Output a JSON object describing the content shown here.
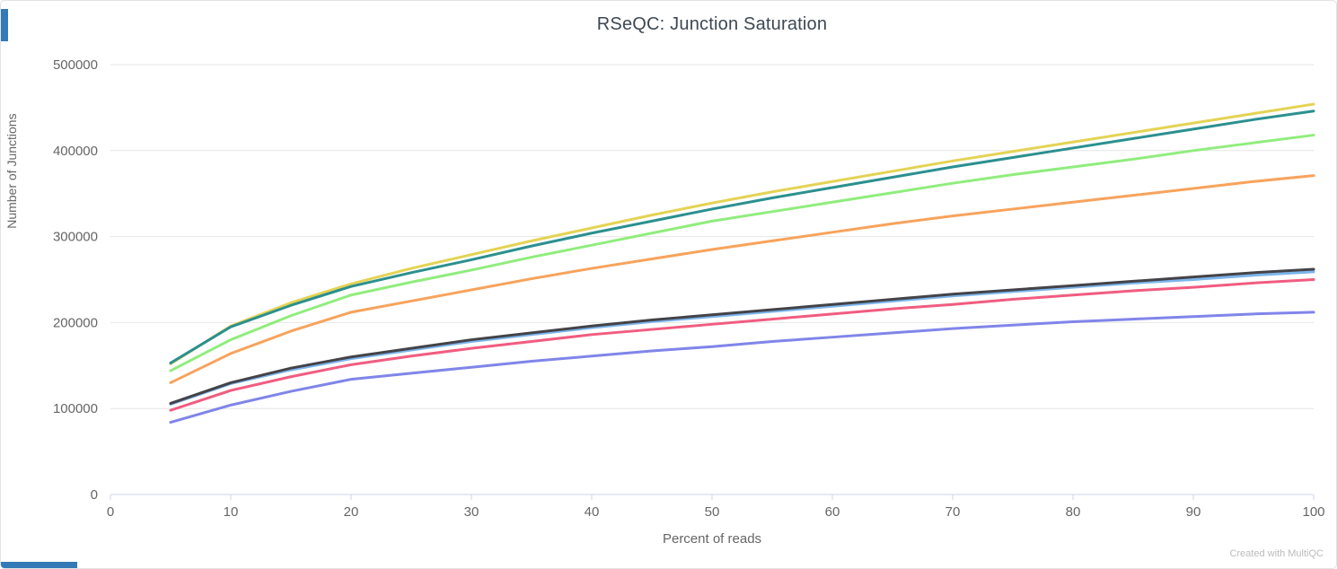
{
  "page": {
    "watermark": "Created with MultiQC"
  },
  "accent": {
    "blue_bar_color": "#337ab7"
  },
  "chart_data": {
    "type": "line",
    "title": "RSeQC: Junction Saturation",
    "xlabel": "Percent of reads",
    "ylabel": "Number of Junctions",
    "xlim": [
      0,
      100
    ],
    "ylim": [
      0,
      500000
    ],
    "x_ticks": [
      0,
      10,
      20,
      30,
      40,
      50,
      60,
      70,
      80,
      90,
      100
    ],
    "y_ticks": [
      0,
      100000,
      200000,
      300000,
      400000,
      500000
    ],
    "grid": "horizontal-only",
    "legend": "none",
    "grid_color": "#e6e6e6",
    "axis_line_color": "#ccd6eb",
    "x": [
      5,
      10,
      15,
      20,
      25,
      30,
      35,
      40,
      45,
      50,
      55,
      60,
      65,
      70,
      75,
      80,
      85,
      90,
      95,
      100
    ],
    "series": [
      {
        "name": "series-lightblue",
        "color": "#7cb5ec",
        "values": [
          105000,
          129000,
          145000,
          158000,
          168000,
          178000,
          186000,
          194000,
          201000,
          207000,
          213000,
          219000,
          225000,
          231000,
          236000,
          241000,
          246000,
          250000,
          255000,
          259000
        ]
      },
      {
        "name": "series-dark",
        "color": "#434348",
        "values": [
          106000,
          130000,
          147000,
          160000,
          170000,
          180000,
          188000,
          196000,
          203000,
          209000,
          215000,
          221000,
          227000,
          233000,
          238000,
          243000,
          248000,
          253000,
          258000,
          262000
        ]
      },
      {
        "name": "series-green",
        "color": "#90ed7d",
        "values": [
          144000,
          180000,
          208000,
          232000,
          247000,
          261000,
          276000,
          290000,
          304000,
          318000,
          329000,
          340000,
          351000,
          362000,
          372000,
          381000,
          390000,
          400000,
          409000,
          418000
        ]
      },
      {
        "name": "series-orange",
        "color": "#f7a35c",
        "values": [
          130000,
          164000,
          190000,
          212000,
          225000,
          238000,
          251000,
          263000,
          274000,
          285000,
          295000,
          305000,
          315000,
          324000,
          332000,
          340000,
          348000,
          356000,
          364000,
          371000
        ]
      },
      {
        "name": "series-purple",
        "color": "#8085e9",
        "values": [
          84000,
          104000,
          120000,
          134000,
          141000,
          148000,
          155000,
          161000,
          167000,
          172000,
          178000,
          183000,
          188000,
          193000,
          197000,
          201000,
          204000,
          207000,
          210000,
          212000
        ]
      },
      {
        "name": "series-pink",
        "color": "#f15c80",
        "values": [
          98000,
          121000,
          137000,
          151000,
          161000,
          170000,
          178000,
          186000,
          192000,
          198000,
          204000,
          210000,
          216000,
          221000,
          227000,
          232000,
          237000,
          241000,
          246000,
          250000
        ]
      },
      {
        "name": "series-yellow",
        "color": "#e4d354",
        "values": [
          152000,
          196000,
          223000,
          245000,
          263000,
          279000,
          295000,
          310000,
          325000,
          339000,
          352000,
          364000,
          376000,
          388000,
          399000,
          410000,
          421000,
          432000,
          443000,
          454000
        ]
      },
      {
        "name": "series-teal",
        "color": "#2b908f",
        "values": [
          153000,
          195000,
          220000,
          242000,
          258000,
          273000,
          289000,
          304000,
          318000,
          332000,
          345000,
          357000,
          369000,
          381000,
          392000,
          403000,
          414000,
          425000,
          436000,
          446000
        ]
      }
    ]
  }
}
